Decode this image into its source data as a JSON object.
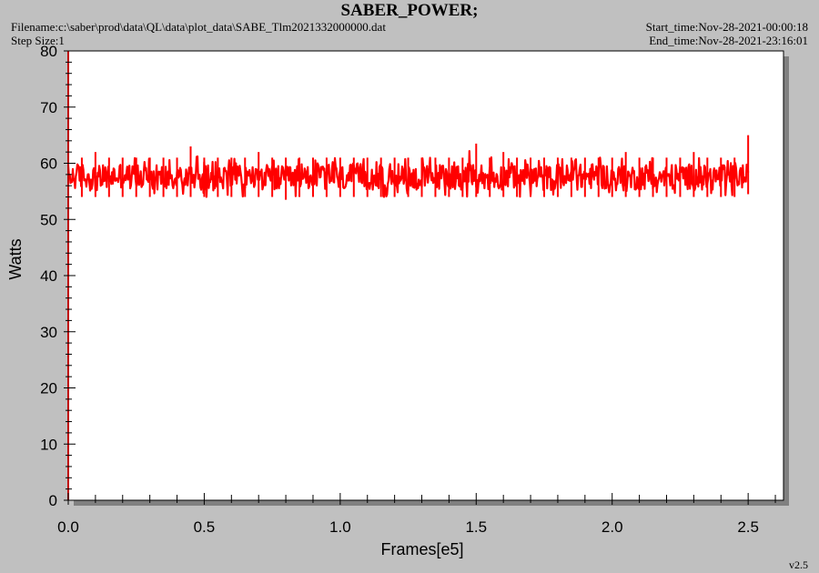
{
  "header": {
    "title": "SABER_POWER;",
    "filename": "Filename:c:\\saber\\prod\\data\\QL\\data\\plot_data\\SABE_Tlm2021332000000.dat",
    "step_size": "Step Size:1",
    "start_time": "Start_time:Nov-28-2021-00:00:18",
    "end_time": "End_time:Nov-28-2021-23:16:01"
  },
  "version": "v2.5",
  "colors": {
    "series": "#ff0000",
    "plot_bg": "#ffffff",
    "page_bg": "#c0c0c0",
    "shadow": "#808080",
    "y_axis": "#c00000"
  },
  "chart_data": {
    "type": "line",
    "xlabel": "Frames[e5]",
    "ylabel": "Watts",
    "xlim": [
      0,
      2.63
    ],
    "ylim": [
      0,
      80
    ],
    "xticks": [
      "0.0",
      "0.5",
      "1.0",
      "1.5",
      "2.0",
      "2.5"
    ],
    "yticks": [
      "0",
      "10",
      "20",
      "30",
      "40",
      "50",
      "60",
      "70",
      "80"
    ],
    "grid": false,
    "series": [
      {
        "x": [
          0.0,
          0.05,
          0.1,
          0.15,
          0.2,
          0.25,
          0.3,
          0.35,
          0.4,
          0.45,
          0.5,
          0.55,
          0.6,
          0.65,
          0.7,
          0.75,
          0.8,
          0.85,
          0.9,
          0.95,
          1.0,
          1.05,
          1.1,
          1.15,
          1.2,
          1.25,
          1.3,
          1.35,
          1.4,
          1.45,
          1.5,
          1.55,
          1.6,
          1.65,
          1.7,
          1.75,
          1.8,
          1.85,
          1.9,
          1.95,
          2.0,
          2.05,
          2.1,
          2.15,
          2.2,
          2.25,
          2.3,
          2.35,
          2.4,
          2.45,
          2.5
        ],
        "y": [
          57.5,
          57.8,
          57.2,
          57.6,
          57.9,
          57.3,
          57.7,
          57.4,
          57.8,
          57.5,
          57.6,
          57.3,
          57.8,
          57.5,
          57.7,
          57.4,
          57.2,
          57.6,
          57.9,
          57.5,
          57.3,
          57.7,
          57.6,
          57.4,
          57.8,
          57.5,
          57.2,
          57.6,
          57.7,
          57.5,
          57.8,
          57.4,
          57.6,
          57.9,
          57.5,
          57.3,
          57.7,
          57.4,
          57.6,
          57.8,
          57.5,
          57.2,
          57.6,
          57.7,
          57.4,
          57.8,
          57.5,
          57.3,
          57.6,
          57.9,
          57.5
        ],
        "y_min": [
          54,
          54,
          54,
          54,
          54,
          54,
          54,
          54,
          54,
          54,
          54,
          54,
          54,
          54,
          54,
          54,
          53.5,
          54,
          54,
          54,
          54,
          54,
          54,
          54,
          54,
          54,
          54,
          54,
          54,
          54,
          54,
          54,
          54,
          54,
          54,
          54,
          54,
          54,
          54,
          54,
          54,
          54,
          54,
          54,
          54,
          54,
          54,
          54,
          54,
          54,
          54.5
        ],
        "y_max": [
          61,
          61,
          62,
          61,
          61,
          61,
          61,
          61,
          61,
          63,
          61,
          61,
          61,
          61,
          62,
          61,
          61,
          61,
          61,
          61,
          61,
          61,
          61,
          61,
          61,
          61,
          61,
          61,
          61,
          61,
          63.5,
          61,
          62,
          61,
          61,
          61,
          61,
          61,
          61,
          61,
          61,
          62,
          61,
          61,
          61,
          61,
          62,
          61,
          61,
          61,
          65
        ]
      }
    ]
  }
}
